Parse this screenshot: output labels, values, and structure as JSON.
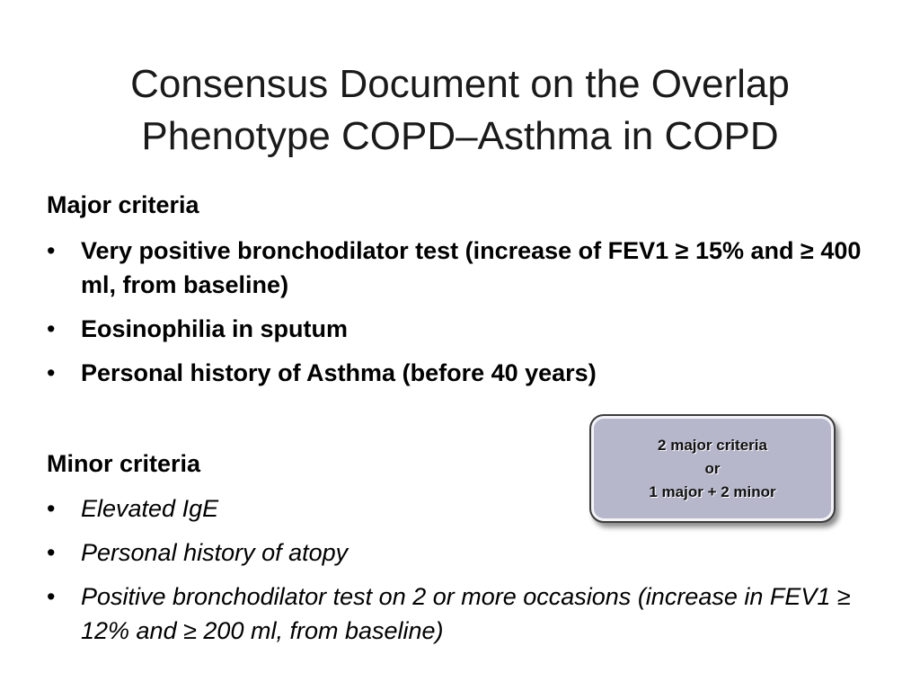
{
  "slide": {
    "title": "Consensus Document on the Overlap Phenotype COPD–Asthma in COPD",
    "bullet_glyph": "•",
    "major": {
      "heading": "Major criteria",
      "items": [
        "Very positive bronchodilator test (increase of FEV1 ≥ 15% and ≥ 400 ml, from baseline)",
        "Eosinophilia in sputum",
        "Personal history of Asthma (before 40 years)"
      ]
    },
    "minor": {
      "heading": "Minor criteria",
      "items": [
        "Elevated IgE",
        "Personal history of atopy",
        "Positive bronchodilator test on 2 or more occasions (increase in FEV1 ≥ 12% and ≥ 200 ml, from baseline)"
      ]
    },
    "rule_box": {
      "line1": "2 major criteria",
      "line2": "or",
      "line3": "1 major + 2 minor"
    }
  }
}
